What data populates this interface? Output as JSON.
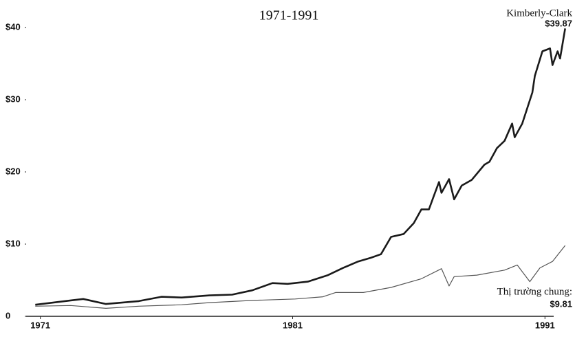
{
  "chart_data": {
    "type": "line",
    "title": "1971-1991",
    "xlim": [
      1970.6,
      1992
    ],
    "xticks": [
      1971,
      1981,
      1991
    ],
    "ylim": [
      0,
      40
    ],
    "yticks": [
      0,
      {
        "value": 10,
        "label": "$10"
      },
      {
        "value": 20,
        "label": "$20"
      },
      {
        "value": 30,
        "label": "$30"
      },
      {
        "value": 40,
        "label": "$40"
      }
    ],
    "grid": false,
    "series": [
      {
        "name": "Kimberly-Clark",
        "color": "#1a1a1a",
        "end_label": "$39.87",
        "x": [
          1970.8,
          1972.2,
          1972.7,
          1973.6,
          1974.9,
          1975.8,
          1976.6,
          1977.7,
          1978.6,
          1979.4,
          1980.2,
          1980.8,
          1981.6,
          1982.4,
          1983.0,
          1983.6,
          1984.1,
          1984.5,
          1984.9,
          1985.4,
          1985.8,
          1986.1,
          1986.4,
          1986.6,
          1986.8,
          1986.9,
          1987.2,
          1987.4,
          1987.7,
          1988.1,
          1988.6,
          1988.8,
          1989.1,
          1989.4,
          1989.7,
          1989.8,
          1990.1,
          1990.5,
          1990.6,
          1990.9,
          1991.2,
          1991.3,
          1991.5,
          1991.6,
          1991.8
        ],
        "values": [
          1.6,
          2.2,
          2.4,
          1.7,
          2.1,
          2.7,
          2.6,
          2.9,
          3.0,
          3.6,
          4.6,
          4.5,
          4.8,
          5.7,
          6.7,
          7.6,
          8.1,
          8.6,
          11,
          11.4,
          12.9,
          14.8,
          14.8,
          16.7,
          18.6,
          17.1,
          19,
          16.2,
          18.1,
          18.9,
          21,
          21.4,
          23.3,
          24.3,
          26.7,
          24.8,
          26.7,
          31,
          33.3,
          36.7,
          37.1,
          34.8,
          36.7,
          35.7,
          39.87
        ]
      },
      {
        "name": "Thị trường chung:",
        "color": "#555555",
        "end_label": "$9.81",
        "x": [
          1970.8,
          1972.2,
          1973.6,
          1974.9,
          1976.6,
          1977.7,
          1979.4,
          1981.1,
          1982.2,
          1982.7,
          1983.8,
          1984.9,
          1986.1,
          1986.9,
          1987.2,
          1987.4,
          1988.3,
          1989.4,
          1989.9,
          1990.4,
          1990.8,
          1991.3,
          1991.8
        ],
        "values": [
          1.4,
          1.5,
          1.1,
          1.4,
          1.6,
          1.9,
          2.2,
          2.4,
          2.7,
          3.3,
          3.3,
          4.0,
          5.2,
          6.6,
          4.2,
          5.5,
          5.7,
          6.4,
          7.1,
          4.8,
          6.7,
          7.6,
          9.81
        ]
      }
    ]
  }
}
